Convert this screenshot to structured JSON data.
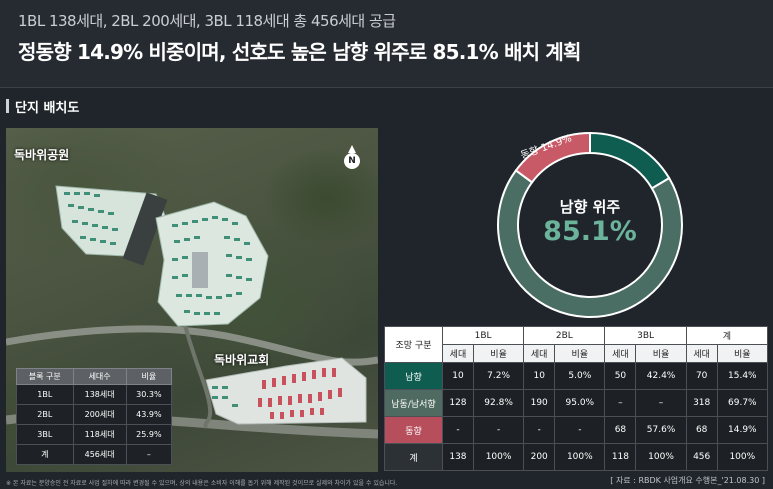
{
  "header": {
    "subtitle": "1BL 138세대, 2BL 200세대, 3BL 118세대 총 456세대 공급",
    "title": "정동향 14.9% 비중이며, 선호도 높은 남향 위주로 85.1% 배치 계획"
  },
  "section": {
    "label": "단지 배치도"
  },
  "map": {
    "label_park": "독바위공원",
    "label_church": "독바위교회",
    "compass_letter": "N",
    "table": {
      "headers": [
        "블록 구분",
        "세대수",
        "비율"
      ],
      "rows": [
        [
          "1BL",
          "138세대",
          "30.3%"
        ],
        [
          "2BL",
          "200세대",
          "43.9%"
        ],
        [
          "3BL",
          "118세대",
          "25.9%"
        ],
        [
          "계",
          "456세대",
          "–"
        ]
      ]
    }
  },
  "donut": {
    "center_label": "남향 위주",
    "center_value": "85.1%",
    "slice_label": "동향 14.9%",
    "colors": {
      "south": "#4a6e63",
      "east": "#c85a68",
      "accent": "#0f5d51"
    }
  },
  "chart_data": {
    "type": "pie",
    "categories": [
      "남향 위주",
      "동향"
    ],
    "values": [
      85.1,
      14.9
    ]
  },
  "table": {
    "group_headers": [
      "조망 구분",
      "1BL",
      "2BL",
      "3BL",
      "계"
    ],
    "sub_headers": [
      "세대",
      "비율",
      "세대",
      "비율",
      "세대",
      "비율",
      "세대",
      "비율"
    ],
    "rows": [
      {
        "label": "남향",
        "cells": [
          "10",
          "7.2%",
          "10",
          "5.0%",
          "50",
          "42.4%",
          "70",
          "15.4%"
        ]
      },
      {
        "label": "남동/남서향",
        "cells": [
          "128",
          "92.8%",
          "190",
          "95.0%",
          "–",
          "–",
          "318",
          "69.7%"
        ]
      },
      {
        "label": "동향",
        "cells": [
          "-",
          "-",
          "-",
          "-",
          "68",
          "57.6%",
          "68",
          "14.9%"
        ]
      },
      {
        "label": "계",
        "cells": [
          "138",
          "100%",
          "200",
          "100%",
          "118",
          "100%",
          "456",
          "100%"
        ]
      }
    ]
  },
  "footer": {
    "note": "※ 본 자료는 분양승인 전 자료로 사업 절차에 따라 변경될 수 있으며, 상의 내용은 소비자 이해를 돕기 위해 제작된 것이므로 실제와 차이가 있을 수 있습니다.",
    "source": "[ 자료 : RBDK 사업개요 수행본_'21.08.30 ]"
  }
}
